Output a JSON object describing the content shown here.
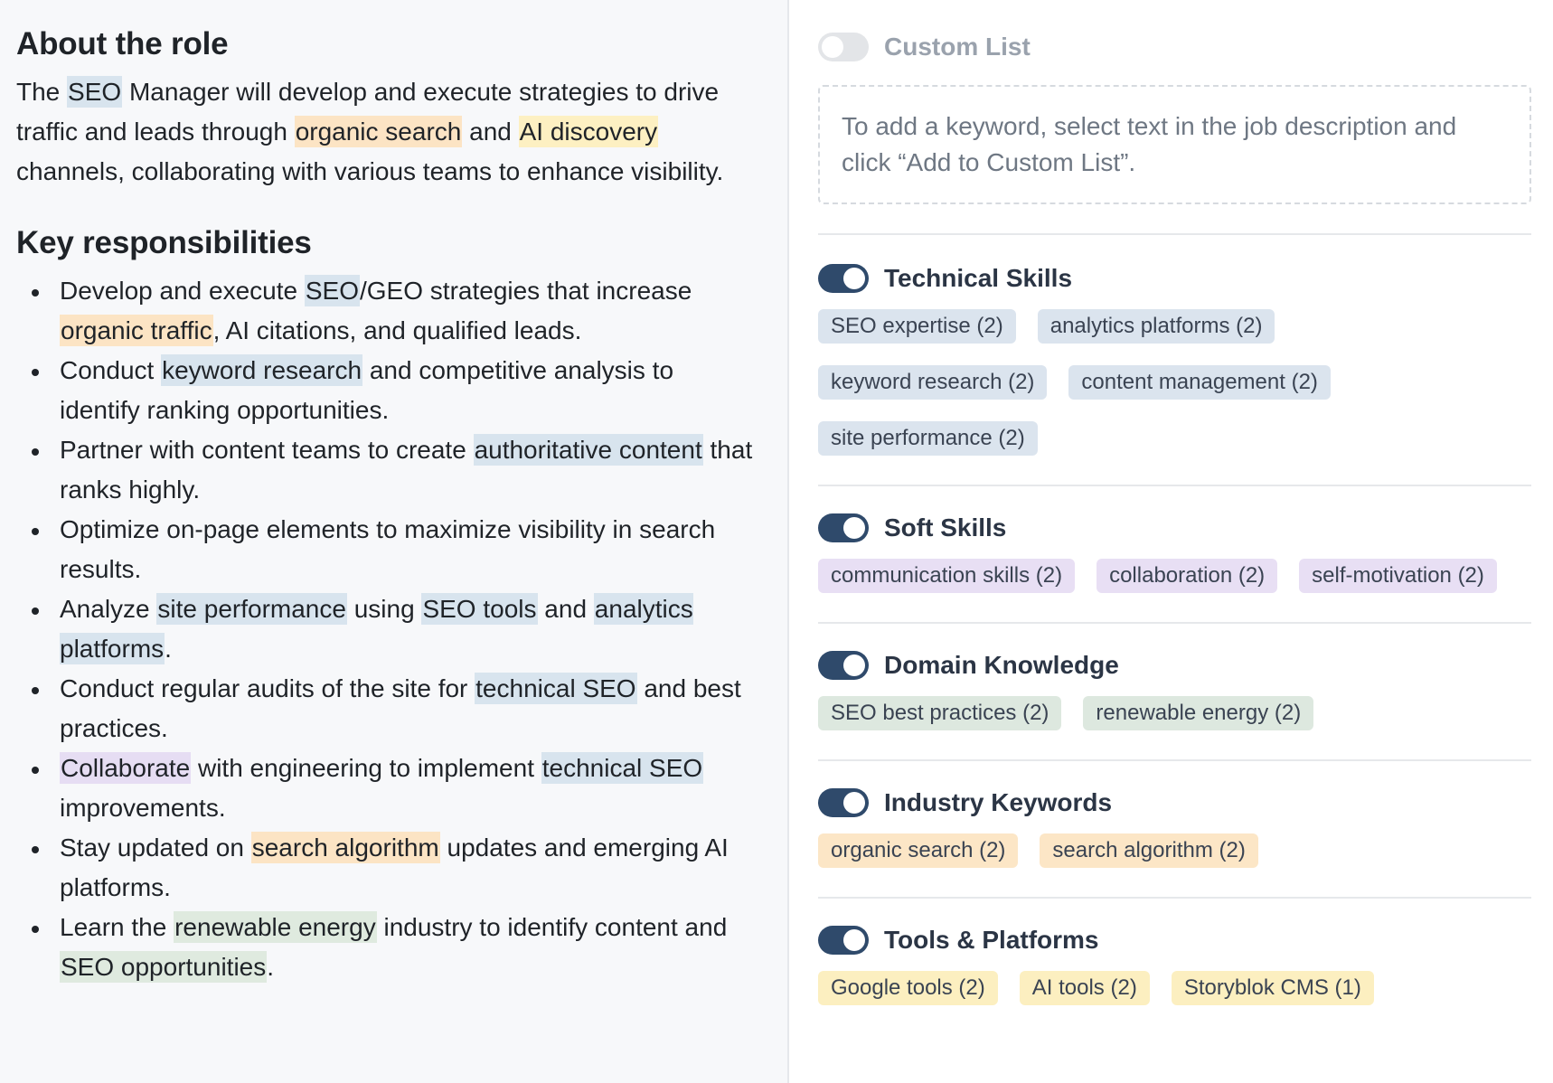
{
  "about": {
    "heading": "About the role",
    "text_1": "The ",
    "hl_seo": "SEO",
    "text_2": " Manager will develop and execute strategies to drive traffic and leads through ",
    "hl_organic_search": "organic search",
    "text_3": " and ",
    "hl_ai_discovery": "AI discovery",
    "text_4": " channels, collaborating with various teams to enhance visibility."
  },
  "responsibilities": {
    "heading": "Key responsibilities",
    "items": [
      {
        "parts": [
          {
            "t": "Develop and execute "
          },
          {
            "t": "SEO",
            "hl": "blue"
          },
          {
            "t": "/GEO strategies that increase "
          },
          {
            "t": "organic traffic",
            "hl": "orange"
          },
          {
            "t": ", AI citations, and qualified leads."
          }
        ]
      },
      {
        "parts": [
          {
            "t": "Conduct "
          },
          {
            "t": "keyword research",
            "hl": "blue"
          },
          {
            "t": " and competitive analysis to identify ranking opportunities."
          }
        ]
      },
      {
        "parts": [
          {
            "t": "Partner with content teams to create "
          },
          {
            "t": "authoritative content",
            "hl": "blue"
          },
          {
            "t": " that ranks highly."
          }
        ]
      },
      {
        "parts": [
          {
            "t": "Optimize on-page elements to maximize visibility in search results."
          }
        ]
      },
      {
        "parts": [
          {
            "t": "Analyze "
          },
          {
            "t": "site performance",
            "hl": "blue"
          },
          {
            "t": " using "
          },
          {
            "t": "SEO tools",
            "hl": "blue"
          },
          {
            "t": " and "
          },
          {
            "t": "analytics platforms",
            "hl": "blue"
          },
          {
            "t": "."
          }
        ]
      },
      {
        "parts": [
          {
            "t": "Conduct regular audits of the site for "
          },
          {
            "t": "technical SEO",
            "hl": "blue"
          },
          {
            "t": " and best practices."
          }
        ]
      },
      {
        "parts": [
          {
            "t": "Collaborate",
            "hl": "purple"
          },
          {
            "t": " with engineering to implement "
          },
          {
            "t": "technical SEO",
            "hl": "blue"
          },
          {
            "t": " improvements."
          }
        ]
      },
      {
        "parts": [
          {
            "t": "Stay updated on "
          },
          {
            "t": "search algorithm",
            "hl": "orange"
          },
          {
            "t": " updates and emerging AI platforms."
          }
        ]
      },
      {
        "parts": [
          {
            "t": "Learn the "
          },
          {
            "t": "renewable energy",
            "hl": "green"
          },
          {
            "t": " industry to identify content and "
          },
          {
            "t": "SEO opportunities",
            "hl": "green"
          },
          {
            "t": "."
          }
        ]
      }
    ]
  },
  "custom_list": {
    "label": "Custom List",
    "enabled": false,
    "hint": "To add a keyword, select text in the job description and click “Add to Custom List”."
  },
  "categories": [
    {
      "label": "Technical Skills",
      "enabled": true,
      "color": "blue",
      "chips": [
        "SEO expertise (2)",
        "analytics platforms (2)",
        "keyword research (2)",
        "content management (2)",
        "site performance (2)"
      ]
    },
    {
      "label": "Soft Skills",
      "enabled": true,
      "color": "purple",
      "chips": [
        "communication skills (2)",
        "collaboration (2)",
        "self-motivation (2)"
      ]
    },
    {
      "label": "Domain Knowledge",
      "enabled": true,
      "color": "green",
      "chips": [
        "SEO best practices (2)",
        "renewable energy (2)"
      ]
    },
    {
      "label": "Industry Keywords",
      "enabled": true,
      "color": "orange",
      "chips": [
        "organic search (2)",
        "search algorithm (2)"
      ]
    },
    {
      "label": "Tools & Platforms",
      "enabled": true,
      "color": "yellow",
      "chips": [
        "Google tools (2)",
        "AI tools (2)",
        "Storyblok CMS (1)"
      ]
    }
  ],
  "colors": {
    "toggle_on": "#2f4a6b",
    "toggle_off": "#e3e5e8",
    "highlight_blue": "#d8e4ee",
    "highlight_orange": "#fce4c4",
    "highlight_yellow": "#fdf0c2",
    "highlight_purple": "#e6ddf3",
    "highlight_green": "#dfeadf"
  }
}
